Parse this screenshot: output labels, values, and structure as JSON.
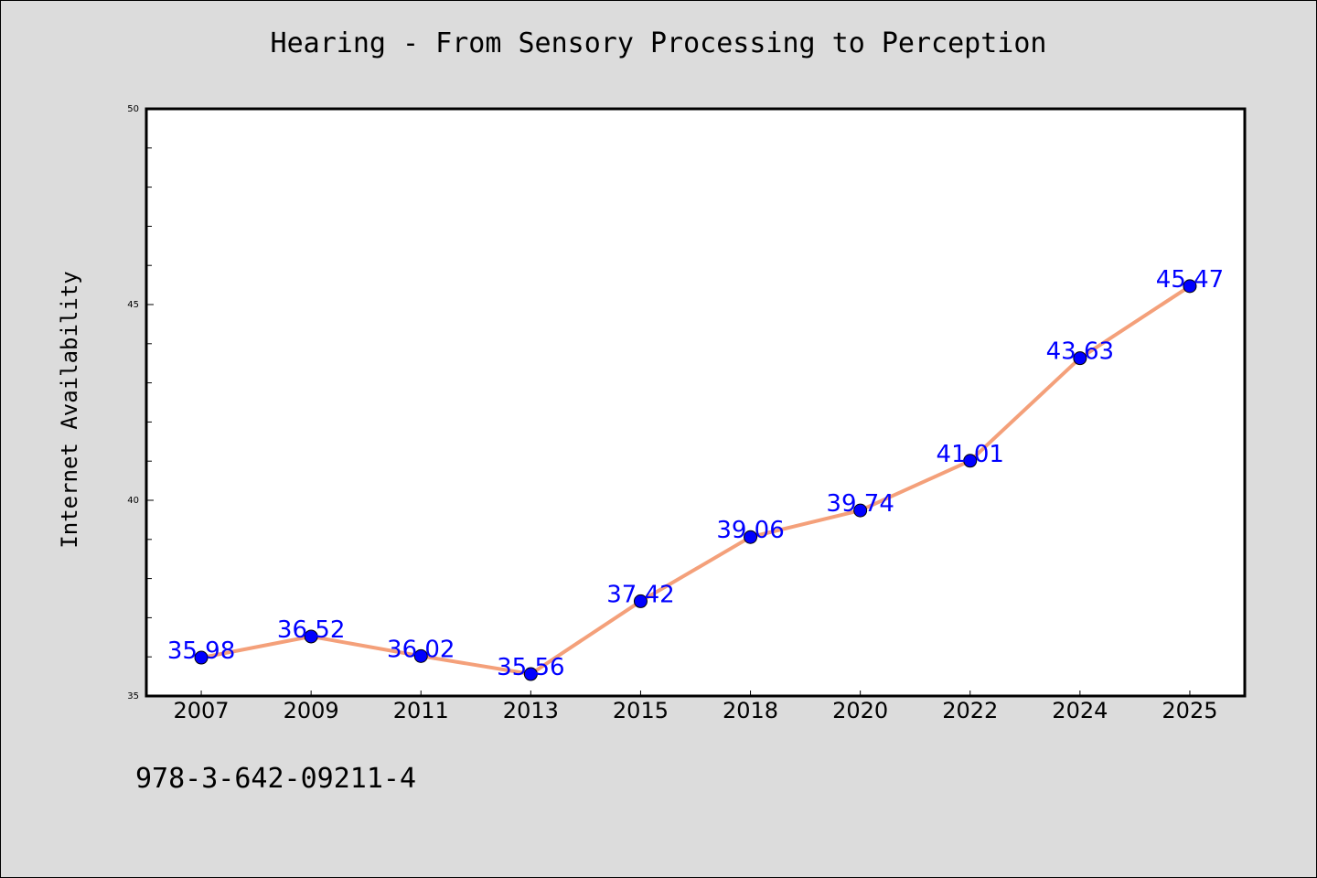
{
  "chart_data": {
    "type": "line",
    "title": "Hearing - From Sensory Processing to Perception",
    "xlabel": "",
    "ylabel": "Internet Availability",
    "categories": [
      "2007",
      "2009",
      "2011",
      "2013",
      "2015",
      "2018",
      "2020",
      "2022",
      "2024",
      "2025"
    ],
    "series": [
      {
        "values": [
          35.98,
          36.52,
          36.02,
          35.56,
          37.42,
          39.06,
          39.74,
          41.01,
          43.63,
          45.47
        ]
      }
    ],
    "data_labels": [
      "35.98",
      "36.52",
      "36.02",
      "35.56",
      "37.42",
      "39.06",
      "39.74",
      "41.01",
      "43.63",
      "45.47"
    ],
    "ylim": [
      35,
      50
    ],
    "yticks": [
      35,
      40,
      45,
      50
    ],
    "grid": false,
    "line_color": "#f4a07a",
    "marker_color": "#0000ff",
    "label_color": "#0000ff"
  },
  "footer": {
    "isbn": "978-3-642-09211-4"
  }
}
